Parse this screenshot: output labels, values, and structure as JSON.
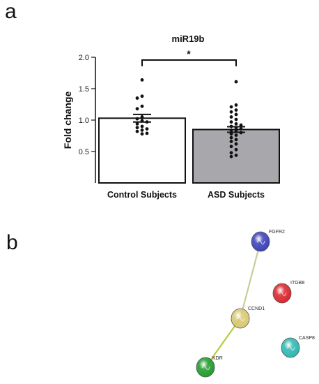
{
  "panels": {
    "a": "a",
    "b": "b"
  },
  "chart_data": {
    "type": "bar",
    "title": "miR19b",
    "ylabel": "Fold change",
    "xlabel": "",
    "ylim": [
      0,
      2.0
    ],
    "yticks": [
      "0.5",
      "1.0",
      "1.5",
      "2.0"
    ],
    "categories": [
      "Control Subjects",
      "ASD Subjects"
    ],
    "values": [
      1.03,
      0.85
    ],
    "sem": [
      0.06,
      0.045
    ],
    "bar_colors": [
      "#ffffff",
      "#a8a8ac"
    ],
    "points": [
      [
        1.64,
        1.38,
        1.35,
        1.22,
        1.18,
        1.05,
        1.02,
        0.99,
        0.97,
        0.94,
        0.9,
        0.88,
        0.86,
        0.84,
        0.82,
        0.79,
        0.78
      ],
      [
        1.61,
        1.24,
        1.21,
        1.16,
        1.13,
        1.09,
        1.05,
        1.01,
        0.97,
        0.94,
        0.92,
        0.9,
        0.88,
        0.86,
        0.84,
        0.82,
        0.8,
        0.78,
        0.76,
        0.72,
        0.69,
        0.66,
        0.62,
        0.58,
        0.53,
        0.48,
        0.44,
        0.42
      ]
    ],
    "significance": "*"
  },
  "network": {
    "nodes": [
      {
        "name": "FGFR2",
        "color": "#3a40b8"
      },
      {
        "name": "ITGB8",
        "color": "#d8242c"
      },
      {
        "name": "CCND1",
        "color": "#d8c870"
      },
      {
        "name": "CASP8",
        "color": "#2eb6b0"
      },
      {
        "name": "KDR",
        "color": "#1f9a2c"
      }
    ],
    "edges": [
      {
        "from": "FGFR2",
        "to": "CCND1",
        "color": "#c8cc9a"
      },
      {
        "from": "CCND1",
        "to": "KDR",
        "color": "#b8cc3a"
      }
    ]
  }
}
